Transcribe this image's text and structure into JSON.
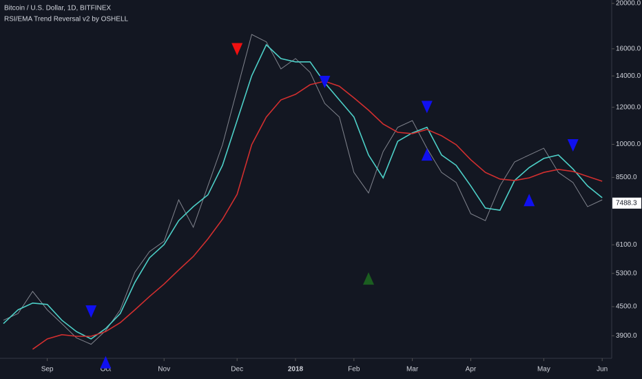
{
  "chart_data": {
    "type": "line",
    "title": "Bitcoin / U.S. Dollar, 1D, BITFINEX",
    "subtitle": "RSI/EMA Trend Reversal v2 by OSHELL",
    "categories": [
      null,
      null,
      null,
      "Sep",
      null,
      null,
      null,
      "Oct",
      null,
      null,
      null,
      "Nov",
      null,
      null,
      null,
      null,
      "Dec",
      null,
      null,
      null,
      "2018",
      null,
      null,
      null,
      "Feb",
      null,
      null,
      null,
      "Mar",
      null,
      null,
      null,
      "Apr",
      null,
      null,
      null,
      null,
      "May",
      null,
      null,
      null,
      "Jun"
    ],
    "series": [
      {
        "color": "#b2b5be",
        "values": [
          4210,
          4350,
          4850,
          4430,
          4140,
          3860,
          3740,
          4000,
          4430,
          5330,
          5900,
          6210,
          7610,
          6650,
          8150,
          9980,
          13090,
          17170,
          16560,
          14490,
          15250,
          14250,
          12230,
          11440,
          8710,
          7870,
          9650,
          10870,
          11240,
          9810,
          8710,
          8290,
          7110,
          6870,
          8150,
          9170,
          9490,
          9810,
          8710,
          8290,
          7360,
          7610
        ]
      },
      {
        "color": "#4dd0c8",
        "values": [
          4140,
          4430,
          4580,
          4550,
          4210,
          3980,
          3840,
          4040,
          4350,
          5070,
          5720,
          6110,
          6870,
          7360,
          7800,
          9020,
          11240,
          14010,
          16320,
          15250,
          15000,
          15000,
          13540,
          12440,
          11440,
          9490,
          8480,
          10150,
          10580,
          10870,
          9490,
          9020,
          8150,
          7310,
          7230,
          8370,
          8920,
          9330,
          9490,
          8860,
          8150,
          7690
        ]
      },
      {
        "color": "#d32f2f",
        "values": [
          null,
          null,
          3650,
          3840,
          3920,
          3890,
          3890,
          3980,
          4160,
          4430,
          4730,
          5030,
          5390,
          5760,
          6280,
          6920,
          7820,
          9980,
          11440,
          12440,
          12790,
          13410,
          13640,
          13310,
          12570,
          11830,
          11050,
          10610,
          10540,
          10760,
          10430,
          9980,
          9270,
          8710,
          8430,
          8370,
          8480,
          8710,
          8840,
          8750,
          8540,
          8340
        ]
      }
    ],
    "signals": [
      {
        "index": 6,
        "value": 4260,
        "direction": "down",
        "color": "#1010f0"
      },
      {
        "index": 7,
        "value": 3530,
        "direction": "up",
        "color": "#1010f0"
      },
      {
        "index": 16,
        "value": 15480,
        "direction": "down",
        "color": "#f01010"
      },
      {
        "index": 22,
        "value": 13180,
        "direction": "down",
        "color": "#1010f0"
      },
      {
        "index": 25,
        "value": 5330,
        "direction": "up",
        "color": "#1b5e20"
      },
      {
        "index": 29,
        "value": 11650,
        "direction": "down",
        "color": "#1010f0"
      },
      {
        "index": 29,
        "value": 9810,
        "direction": "up",
        "color": "#1010f0"
      },
      {
        "index": 36,
        "value": 7840,
        "direction": "up",
        "color": "#1010f0"
      },
      {
        "index": 39,
        "value": 9650,
        "direction": "down",
        "color": "#1010f0"
      }
    ],
    "last_price": 7488.3,
    "log_scale": true,
    "ylim": [
      3490,
      20340
    ],
    "yticks": [
      {
        "value": 3900,
        "label": "3900.0"
      },
      {
        "value": 4500,
        "label": "4500.0"
      },
      {
        "value": 5300,
        "label": "5300.0"
      },
      {
        "value": 6100,
        "label": "6100.0"
      },
      {
        "value": 8500,
        "label": "8500.0"
      },
      {
        "value": 10000,
        "label": "10000.0"
      },
      {
        "value": 12000,
        "label": "12000.0"
      },
      {
        "value": 14000,
        "label": "14000.0"
      },
      {
        "value": 16000,
        "label": "16000.0"
      },
      {
        "value": 20000,
        "label": "20000.0"
      }
    ],
    "grid": false
  }
}
